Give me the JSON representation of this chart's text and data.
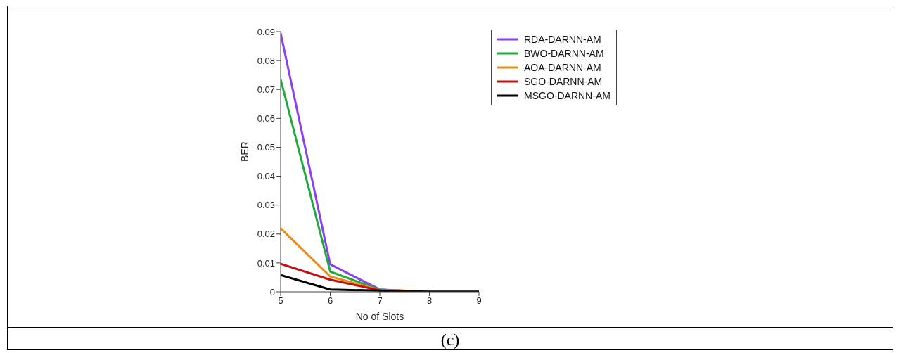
{
  "chart_data": {
    "type": "line",
    "xlabel": "No of Slots",
    "ylabel": "BER",
    "x": [
      5,
      6,
      7,
      8,
      9
    ],
    "xlim": [
      5,
      9
    ],
    "xticks": [
      5,
      6,
      7,
      8,
      9
    ],
    "ylim": [
      0,
      0.09
    ],
    "yticks": [
      0,
      0.01,
      0.02,
      0.03,
      0.04,
      0.05,
      0.06,
      0.07,
      0.08,
      0.09
    ],
    "legend": "top right",
    "marker": "none",
    "line_style": "solid",
    "annotations": [
      "(c)"
    ],
    "series": [
      {
        "name": "RDA-DARNN-AM",
        "color": "#8a3ff0",
        "values": [
          0.0895,
          0.0095,
          0.0008,
          0,
          0
        ]
      },
      {
        "name": "BWO-DARNN-AM",
        "color": "#1faa3c",
        "values": [
          0.0735,
          0.007,
          0.0007,
          0,
          0
        ]
      },
      {
        "name": "AOA-DARNN-AM",
        "color": "#ee8a10",
        "values": [
          0.022,
          0.0053,
          0.0006,
          0,
          0
        ]
      },
      {
        "name": "SGO-DARNN-AM",
        "color": "#c01010",
        "values": [
          0.0097,
          0.0042,
          0.0005,
          0,
          0
        ]
      },
      {
        "name": "MSGO-DARNN-AM",
        "color": "#000000",
        "values": [
          0.0058,
          0.0008,
          0.0004,
          0,
          0
        ]
      }
    ]
  }
}
